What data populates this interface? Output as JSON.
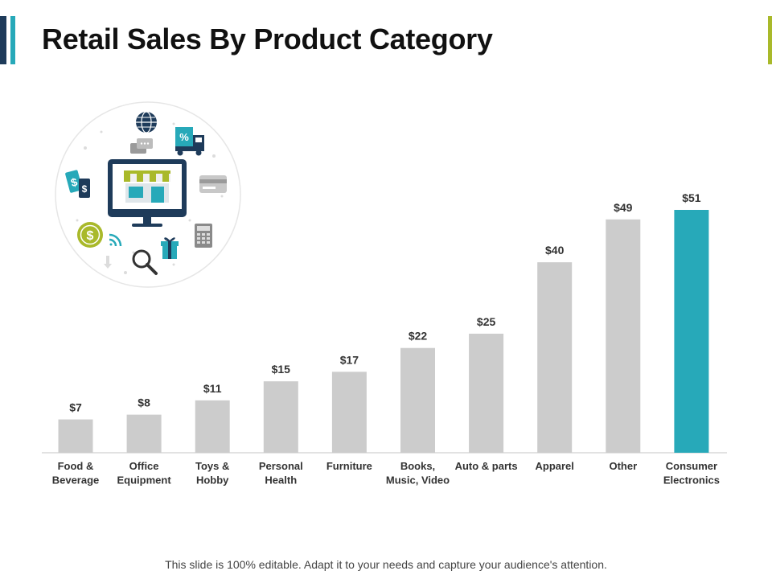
{
  "slide": {
    "title": "Retail Sales By Product Category",
    "footer": "This slide is 100% editable. Adapt it to your needs and capture your audience's attention."
  },
  "colors": {
    "bar": "#cccccc",
    "highlight_bar": "#27a9b9",
    "accent_dark": "#1e3b5a",
    "accent_teal": "#27a9b9",
    "accent_lime": "#a9b92a"
  },
  "illustration": {
    "icons": [
      "globe-icon",
      "delivery-truck-icon",
      "chat-bubbles-icon",
      "price-tags-icon",
      "online-store-monitor-icon",
      "credit-card-icon",
      "dollar-coin-icon",
      "wifi-icon",
      "gift-box-icon",
      "calculator-icon",
      "magnifier-icon"
    ],
    "truck_badge": "%",
    "tag_symbols": [
      "$",
      "$"
    ],
    "coin_symbol": "$"
  },
  "chart_data": {
    "type": "bar",
    "title": "Retail Sales By Product Category",
    "xlabel": "",
    "ylabel": "",
    "ylim": [
      0,
      51
    ],
    "grid": false,
    "highlight_index": 9,
    "categories": [
      [
        "Food &",
        "Beverage"
      ],
      [
        "Office",
        "Equipment"
      ],
      [
        "Toys &",
        "Hobby"
      ],
      [
        "Personal",
        "Health"
      ],
      [
        "Furniture"
      ],
      [
        "Books,",
        "Music, Video"
      ],
      [
        "Auto & parts"
      ],
      [
        "Apparel"
      ],
      [
        "Other"
      ],
      [
        "Consumer",
        "Electronics"
      ]
    ],
    "values": [
      7,
      8,
      11,
      15,
      17,
      22,
      25,
      40,
      49,
      51
    ],
    "value_labels": [
      "$7",
      "$8",
      "$11",
      "$15",
      "$17",
      "$22",
      "$25",
      "$40",
      "$49",
      "$51"
    ]
  }
}
